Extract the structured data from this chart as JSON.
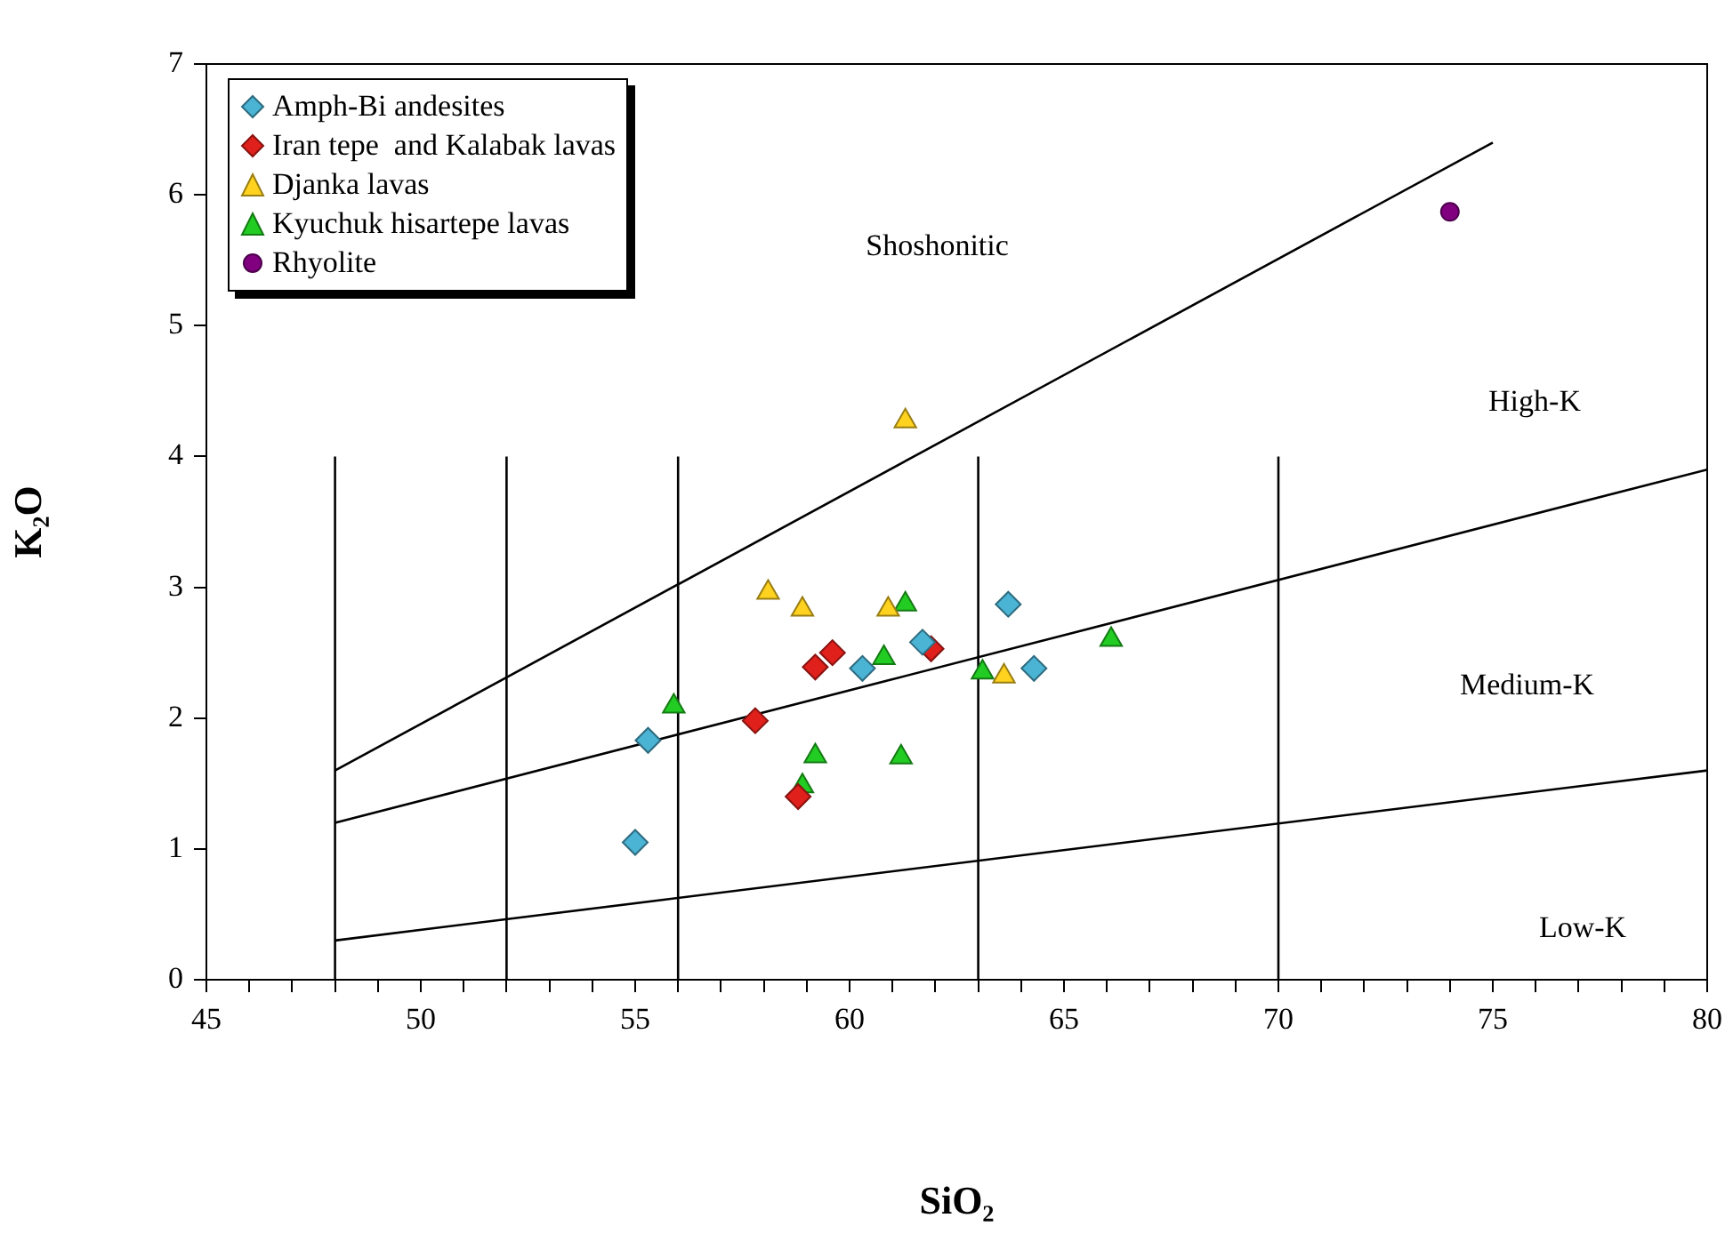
{
  "chart_data": {
    "type": "scatter",
    "xlabel": "SiO₂",
    "ylabel": "K₂O",
    "xlim": [
      45,
      80
    ],
    "ylim": [
      0,
      7
    ],
    "xticks": [
      45,
      {
        "value": 46,
        "label": null
      },
      {
        "value": 47,
        "label": null
      },
      {
        "value": 48,
        "label": null
      },
      {
        "value": 49,
        "label": null
      },
      50,
      {
        "value": 51,
        "label": null
      },
      {
        "value": 52,
        "label": null
      },
      {
        "value": 53,
        "label": null
      },
      {
        "value": 54,
        "label": null
      },
      55,
      {
        "value": 56,
        "label": null
      },
      {
        "value": 57,
        "label": null
      },
      {
        "value": 58,
        "label": null
      },
      {
        "value": 59,
        "label": null
      },
      60,
      {
        "value": 61,
        "label": null
      },
      {
        "value": 62,
        "label": null
      },
      {
        "value": 63,
        "label": null
      },
      {
        "value": 64,
        "label": null
      },
      65,
      {
        "value": 66,
        "label": null
      },
      {
        "value": 67,
        "label": null
      },
      {
        "value": 68,
        "label": null
      },
      {
        "value": 69,
        "label": null
      },
      70,
      {
        "value": 71,
        "label": null
      },
      {
        "value": 72,
        "label": null
      },
      {
        "value": 73,
        "label": null
      },
      {
        "value": 74,
        "label": null
      },
      75,
      {
        "value": 76,
        "label": null
      },
      {
        "value": 77,
        "label": null
      },
      {
        "value": 78,
        "label": null
      },
      {
        "value": 79,
        "label": null
      },
      80
    ],
    "yticks": [
      0,
      1,
      2,
      3,
      4,
      5,
      6,
      7
    ],
    "grid": false,
    "legend": "top left",
    "series": [
      {
        "name": "Amph-Bi andesites",
        "color": "#4bb3d3",
        "marker": "diamond",
        "x": [
          55.0,
          55.3,
          60.3,
          61.7,
          63.7,
          64.3
        ],
        "values": [
          1.05,
          1.83,
          2.38,
          2.58,
          2.87,
          2.38
        ]
      },
      {
        "name": "Iran tepe  and Kalabak lavas",
        "color": "#e0201b",
        "marker": "diamond",
        "x": [
          57.8,
          59.2,
          59.6,
          61.9,
          58.8
        ],
        "values": [
          1.98,
          2.39,
          2.5,
          2.53,
          1.4
        ]
      },
      {
        "name": "Djanka lavas",
        "color": "#ffd21f",
        "marker": "triangle",
        "x": [
          58.1,
          58.9,
          60.9,
          63.6,
          61.3
        ],
        "values": [
          2.96,
          2.83,
          2.83,
          2.32,
          4.27
        ]
      },
      {
        "name": "Kyuchuk hisartepe lavas",
        "color": "#22cc22",
        "marker": "triangle",
        "x": [
          55.9,
          61.3,
          60.8,
          63.1,
          66.1,
          59.2,
          58.9,
          61.2
        ],
        "values": [
          2.09,
          2.87,
          2.46,
          2.35,
          2.6,
          1.71,
          1.48,
          1.7
        ]
      },
      {
        "name": "Rhyolite",
        "color": "#800080",
        "marker": "circle",
        "x": [
          74.0
        ],
        "values": [
          5.87
        ]
      },
      {
        "type": "line",
        "color": "#000000",
        "marker": "none",
        "x": [
          48,
          75
        ],
        "values": [
          1.6,
          6.4
        ]
      },
      {
        "type": "line",
        "color": "#000000",
        "marker": "none",
        "x": [
          48,
          80
        ],
        "values": [
          1.2,
          3.9
        ]
      },
      {
        "type": "line",
        "color": "#000000",
        "marker": "none",
        "x": [
          48,
          80
        ],
        "values": [
          0.3,
          1.6
        ]
      },
      {
        "type": "line",
        "color": "#000000",
        "marker": "none",
        "x": [
          48,
          48
        ],
        "values": [
          0,
          4
        ]
      },
      {
        "type": "line",
        "color": "#000000",
        "marker": "none",
        "x": [
          52,
          52
        ],
        "values": [
          0,
          4
        ]
      },
      {
        "type": "line",
        "color": "#000000",
        "marker": "none",
        "x": [
          56,
          56
        ],
        "values": [
          0,
          4
        ]
      },
      {
        "type": "line",
        "color": "#000000",
        "marker": "none",
        "x": [
          63,
          63
        ],
        "values": [
          0,
          4
        ]
      },
      {
        "type": "line",
        "color": "#000000",
        "marker": "none",
        "x": [
          70,
          70
        ],
        "values": [
          0,
          4
        ]
      }
    ],
    "annotations": [
      "Shoshonitic",
      "High-K",
      "Medium-K",
      "Low-K"
    ]
  }
}
